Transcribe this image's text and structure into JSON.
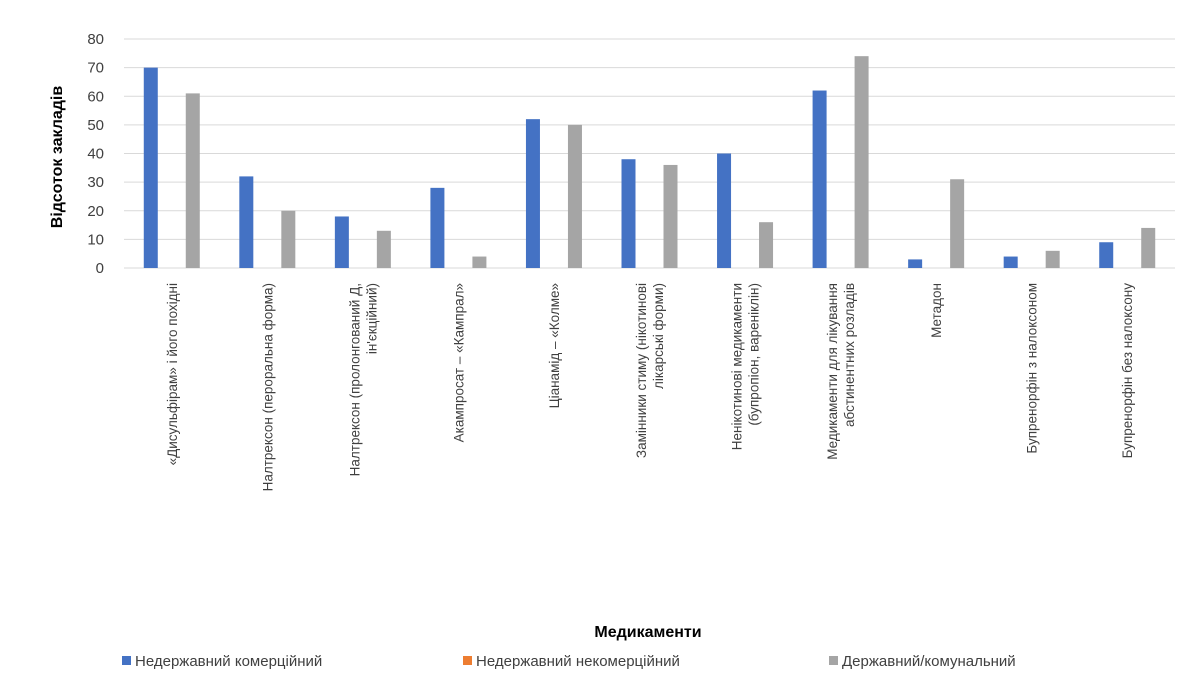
{
  "chart_data": {
    "type": "bar",
    "xlabel": "Медикаменти",
    "ylabel": "Відсоток закладів",
    "ylim": [
      0,
      80
    ],
    "yticks": [
      0,
      10,
      20,
      30,
      40,
      50,
      60,
      70,
      80
    ],
    "grid": true,
    "legend_position": "bottom",
    "categories": [
      [
        "«Дисульфірам» і його похідні"
      ],
      [
        "Налтрексон (пероральна форма)"
      ],
      [
        "Налтрексон (пролонгований Д,",
        "ін'єкційний)"
      ],
      [
        "Акампросат – «Кампрал»"
      ],
      [
        "Ціанамід – «Колме»"
      ],
      [
        "Замінники стиму (нікотинові",
        "лікарські форми)"
      ],
      [
        "Ненікотинові медикаменти",
        "(бупропіон, вареніклін)"
      ],
      [
        "Медикаменти для лікування",
        "абстинентних розладів"
      ],
      [
        "Метадон"
      ],
      [
        "Бупренорфін з налоксоном"
      ],
      [
        "Бупренорфін без налоксону"
      ]
    ],
    "series": [
      {
        "name": "Недержавний комерційний",
        "color": "#4472c4",
        "values": [
          70,
          32,
          18,
          28,
          52,
          38,
          40,
          62,
          3,
          4,
          9
        ]
      },
      {
        "name": "Недержавний некомерційний",
        "color": "#ed7d31",
        "values": [
          0,
          0,
          0,
          0,
          0,
          0,
          0,
          0,
          0,
          0,
          0
        ]
      },
      {
        "name": "Державний/комунальний",
        "color": "#a5a5a5",
        "values": [
          61,
          20,
          13,
          4,
          50,
          36,
          16,
          74,
          31,
          6,
          14
        ]
      }
    ]
  }
}
